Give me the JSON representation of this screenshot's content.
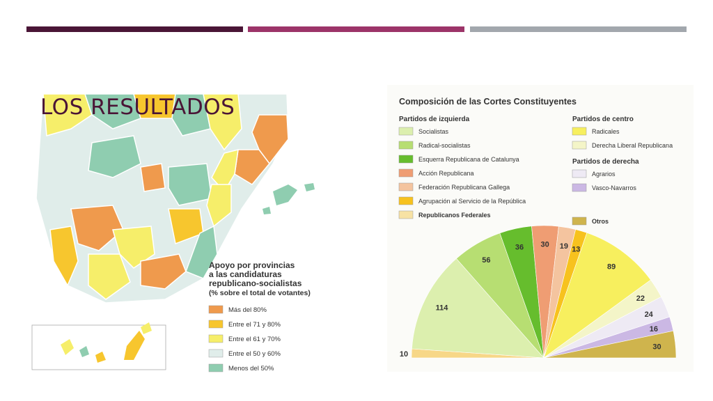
{
  "slide": {
    "title": "LOS RESULTADOS",
    "bar_colors": [
      "#4a1536",
      "#9c3469",
      "#a2a7ad"
    ]
  },
  "map": {
    "legend_title": [
      "Apoyo por provincias",
      "a las candidaturas",
      "republicano-socialistas",
      "(% sobre el total de votantes)"
    ],
    "legend_items": [
      {
        "label": "Más del 80%",
        "color": "#ef9a4d"
      },
      {
        "label": "Entre el 71 y 80%",
        "color": "#f7c62e"
      },
      {
        "label": "Entre el 61 y 70%",
        "color": "#f6ee6a"
      },
      {
        "label": "Entre el 50 y 60%",
        "color": "#e0edea"
      },
      {
        "label": "Menos del 50%",
        "color": "#8fcdb0"
      }
    ]
  },
  "chart_data": {
    "type": "pie",
    "title": "Composición de las Cortes Constituyentes",
    "groups": [
      {
        "title": "Partidos de izquierda",
        "entries": [
          {
            "label": "Socialistas",
            "color": "#dcefae"
          },
          {
            "label": "Radical-socialistas",
            "color": "#b7de72"
          },
          {
            "label": "Esquerra Republicana de Catalunya",
            "color": "#66bd2d"
          },
          {
            "label": "Acción Republicana",
            "color": "#ef9d73"
          },
          {
            "label": "Federación Republicana Gallega",
            "color": "#f4c49f"
          },
          {
            "label": "Agrupación al Servicio de la República",
            "color": "#f7c21e"
          },
          {
            "label": "Republicanos Federales",
            "color": "#f7e2a4"
          }
        ]
      },
      {
        "title": "Partidos de centro",
        "entries": [
          {
            "label": "Radicales",
            "color": "#f7ef5e"
          },
          {
            "label": "Derecha Liberal Republicana",
            "color": "#f4f5c8"
          }
        ]
      },
      {
        "title": "Partidos de derecha",
        "entries": [
          {
            "label": "Agrarios",
            "color": "#eeeaf4"
          },
          {
            "label": "Vasco-Navarros",
            "color": "#cbb8e4"
          }
        ]
      },
      {
        "title": "",
        "entries": [
          {
            "label": "Otros",
            "color": "#cfb44d"
          }
        ]
      }
    ],
    "slices": [
      {
        "party": "Republicanos Federales",
        "value": 10,
        "color": "#f7d788"
      },
      {
        "party": "Socialistas",
        "value": 114,
        "color": "#dcefae"
      },
      {
        "party": "Radical-socialistas",
        "value": 56,
        "color": "#b7de72"
      },
      {
        "party": "Esquerra Republicana de Catalunya",
        "value": 36,
        "color": "#66bd2d"
      },
      {
        "party": "Acción Republicana",
        "value": 30,
        "color": "#ef9d73"
      },
      {
        "party": "Federación Republicana Gallega",
        "value": 19,
        "color": "#f4c49f"
      },
      {
        "party": "Agrupación al Servicio de la República",
        "value": 13,
        "color": "#f7c21e"
      },
      {
        "party": "Radicales",
        "value": 89,
        "color": "#f7ef5e"
      },
      {
        "party": "Derecha Liberal Republicana",
        "value": 22,
        "color": "#f4f5c8"
      },
      {
        "party": "Agrarios",
        "value": 24,
        "color": "#eeeaf4"
      },
      {
        "party": "Vasco-Navarros",
        "value": 16,
        "color": "#cbb8e4"
      },
      {
        "party": "Otros",
        "value": 30,
        "color": "#cfb44d"
      }
    ]
  }
}
